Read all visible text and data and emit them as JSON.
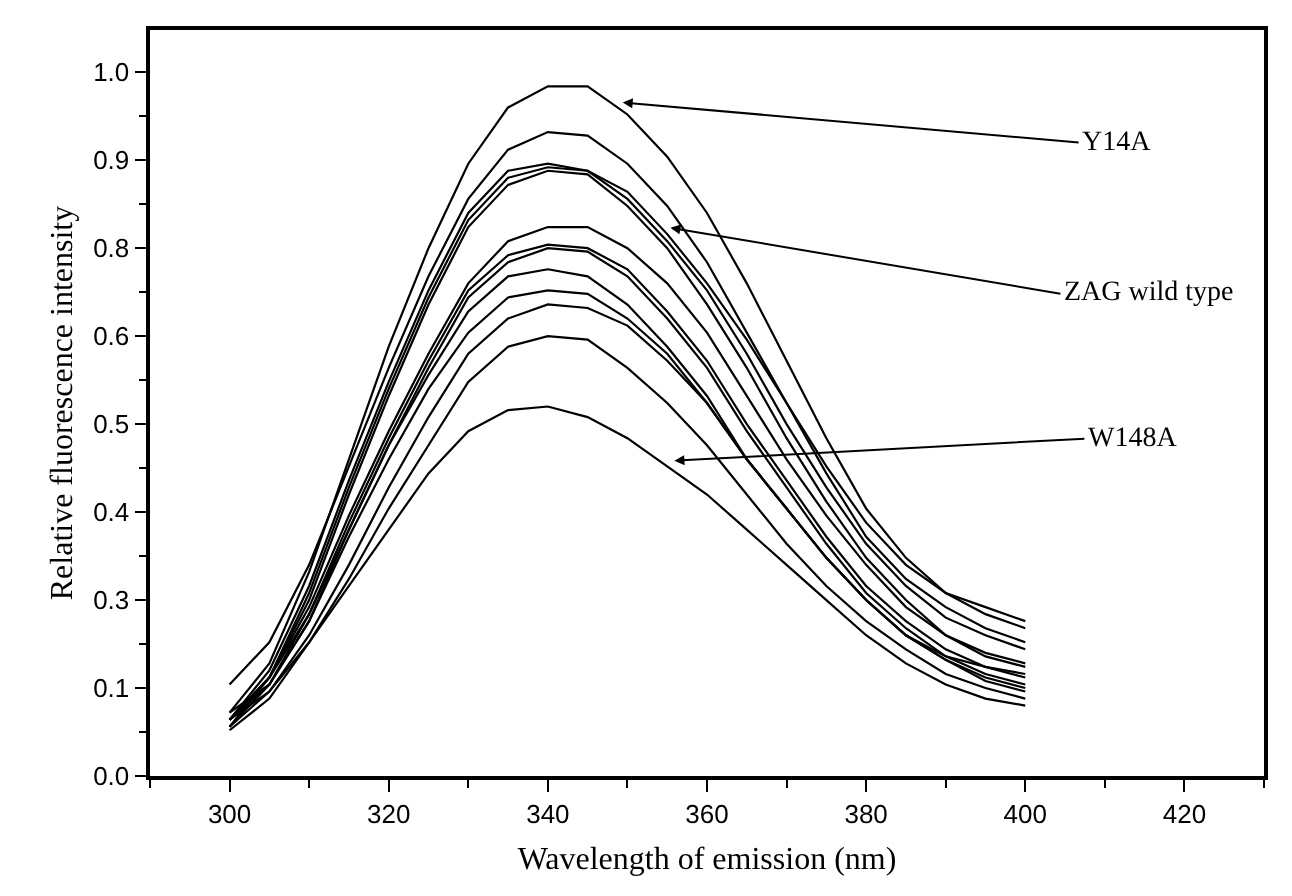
{
  "chart_data": {
    "type": "line",
    "xlabel": "Wavelength of emission (nm)",
    "ylabel": "Relative fluorescence intensity",
    "x": [
      300,
      305,
      310,
      315,
      320,
      325,
      330,
      335,
      340,
      345,
      350,
      355,
      360,
      365,
      370,
      375,
      380,
      385,
      390,
      395,
      400
    ],
    "xlim": [
      290,
      430
    ],
    "xticks": [
      300,
      320,
      340,
      360,
      380,
      400,
      420
    ],
    "ylim": [
      0,
      1.06
    ],
    "yticks": [
      {
        "value": 0,
        "label": "0.0"
      },
      {
        "value": 0.125,
        "label": "0.1"
      },
      {
        "value": 0.25,
        "label": "0.3"
      },
      {
        "value": 0.375,
        "label": "0.4"
      },
      {
        "value": 0.5,
        "label": "0.5"
      },
      {
        "value": 0.625,
        "label": "0.6"
      },
      {
        "value": 0.75,
        "label": "0.8"
      },
      {
        "value": 0.875,
        "label": "0.9"
      },
      {
        "value": 1,
        "label": "1.0"
      }
    ],
    "marker": "none",
    "line_style": "solid",
    "series": [
      {
        "color": "#000000",
        "values": [
          0.09,
          0.16,
          0.29,
          0.45,
          0.61,
          0.75,
          0.87,
          0.95,
          0.98,
          0.98,
          0.94,
          0.88,
          0.8,
          0.7,
          0.59,
          0.48,
          0.38,
          0.31,
          0.26,
          0.23,
          0.21
        ]
      },
      {
        "color": "#000000",
        "values": [
          0.13,
          0.19,
          0.3,
          0.44,
          0.58,
          0.71,
          0.82,
          0.89,
          0.915,
          0.91,
          0.87,
          0.81,
          0.73,
          0.63,
          0.53,
          0.43,
          0.34,
          0.28,
          0.24,
          0.21,
          0.19
        ]
      },
      {
        "color": "#000000",
        "values": [
          0.08,
          0.15,
          0.27,
          0.42,
          0.56,
          0.69,
          0.8,
          0.86,
          0.87,
          0.86,
          0.83,
          0.77,
          0.7,
          0.62,
          0.53,
          0.44,
          0.36,
          0.3,
          0.26,
          0.24,
          0.22
        ]
      },
      {
        "color": "#000000",
        "values": [
          0.08,
          0.14,
          0.26,
          0.41,
          0.55,
          0.68,
          0.79,
          0.85,
          0.865,
          0.86,
          0.82,
          0.76,
          0.69,
          0.6,
          0.5,
          0.41,
          0.33,
          0.27,
          0.225,
          0.2,
          0.18
        ]
      },
      {
        "color": "#000000",
        "values": [
          0.07,
          0.14,
          0.25,
          0.4,
          0.54,
          0.67,
          0.78,
          0.84,
          0.86,
          0.855,
          0.81,
          0.75,
          0.67,
          0.58,
          0.48,
          0.39,
          0.31,
          0.25,
          0.2,
          0.17,
          0.155
        ]
      },
      {
        "color": "#000000",
        "values": [
          0.08,
          0.14,
          0.24,
          0.37,
          0.49,
          0.6,
          0.7,
          0.76,
          0.78,
          0.78,
          0.75,
          0.7,
          0.63,
          0.54,
          0.45,
          0.37,
          0.3,
          0.24,
          0.2,
          0.175,
          0.16
        ]
      },
      {
        "color": "#000000",
        "values": [
          0.07,
          0.13,
          0.23,
          0.36,
          0.48,
          0.59,
          0.69,
          0.74,
          0.755,
          0.75,
          0.72,
          0.66,
          0.59,
          0.5,
          0.42,
          0.34,
          0.27,
          0.22,
          0.18,
          0.155,
          0.14
        ]
      },
      {
        "color": "#000000",
        "values": [
          0.08,
          0.13,
          0.22,
          0.35,
          0.47,
          0.58,
          0.68,
          0.73,
          0.75,
          0.745,
          0.71,
          0.65,
          0.58,
          0.49,
          0.41,
          0.33,
          0.26,
          0.21,
          0.17,
          0.155,
          0.145
        ]
      },
      {
        "color": "#000000",
        "values": [
          0.08,
          0.14,
          0.23,
          0.35,
          0.47,
          0.57,
          0.66,
          0.71,
          0.72,
          0.71,
          0.67,
          0.61,
          0.54,
          0.45,
          0.38,
          0.31,
          0.25,
          0.2,
          0.17,
          0.145,
          0.13
        ]
      },
      {
        "color": "#000000",
        "values": [
          0.09,
          0.13,
          0.22,
          0.34,
          0.45,
          0.55,
          0.63,
          0.68,
          0.69,
          0.685,
          0.65,
          0.6,
          0.53,
          0.45,
          0.38,
          0.31,
          0.25,
          0.2,
          0.165,
          0.135,
          0.12
        ]
      },
      {
        "color": "#000000",
        "values": [
          0.07,
          0.12,
          0.2,
          0.3,
          0.41,
          0.51,
          0.6,
          0.65,
          0.67,
          0.665,
          0.64,
          0.59,
          0.53,
          0.45,
          0.38,
          0.31,
          0.25,
          0.2,
          0.165,
          0.14,
          0.125
        ]
      },
      {
        "color": "#000000",
        "values": [
          0.065,
          0.11,
          0.19,
          0.28,
          0.38,
          0.47,
          0.56,
          0.61,
          0.625,
          0.62,
          0.58,
          0.53,
          0.47,
          0.4,
          0.33,
          0.27,
          0.22,
          0.18,
          0.145,
          0.125,
          0.11
        ]
      },
      {
        "color": "#000000",
        "values": [
          0.08,
          0.12,
          0.19,
          0.27,
          0.35,
          0.43,
          0.49,
          0.52,
          0.525,
          0.51,
          0.48,
          0.44,
          0.4,
          0.35,
          0.3,
          0.25,
          0.2,
          0.16,
          0.13,
          0.11,
          0.1
        ]
      }
    ],
    "annotations": [
      {
        "text": "Y14A",
        "x": 349.4,
        "y": 0.957
      },
      {
        "text": "ZAG wild type",
        "x": 355.4,
        "y": 0.779
      },
      {
        "text": "W148A",
        "x": 355.9,
        "y": 0.448
      }
    ]
  }
}
